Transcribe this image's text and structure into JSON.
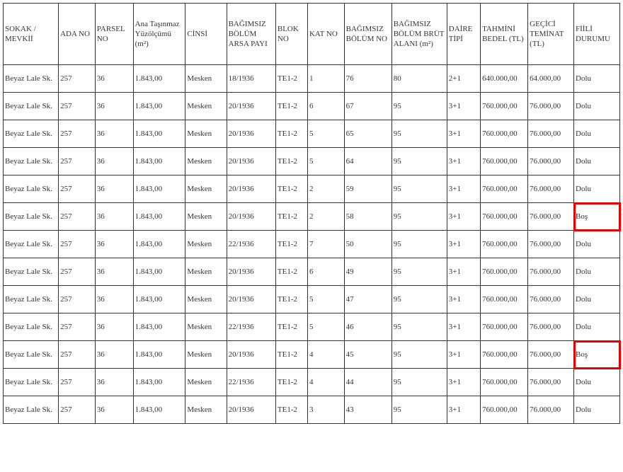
{
  "table": {
    "columns": [
      "SOKAK / MEVKİİ",
      "ADA NO",
      "PARSEL NO",
      "Ana Taşınmaz Yüzölçümü (m²)",
      "CİNSİ",
      "BAĞIMSIZ BÖLÜM ARSA PAYI",
      "BLOK NO",
      "KAT NO",
      "BAĞIMSIZ BÖLÜM NO",
      "BAĞIMSIZ BÖLÜM BRÜT ALANI (m²)",
      "DAİRE TİPİ",
      "TAHMİNİ BEDEL (TL)",
      "GEÇİCİ TEMİNAT (TL)",
      "FİİLİ DURUMU"
    ],
    "rows": [
      [
        "Beyaz Lale Sk.",
        "257",
        "36",
        "1.843,00",
        "Mesken",
        "18/1936",
        "TE1-2",
        "1",
        "76",
        "80",
        "2+1",
        "640.000,00",
        "64.000,00",
        "Dolu"
      ],
      [
        "Beyaz Lale Sk.",
        "257",
        "36",
        "1.843,00",
        "Mesken",
        "20/1936",
        "TE1-2",
        "6",
        "67",
        "95",
        "3+1",
        "760.000,00",
        "76.000,00",
        "Dolu"
      ],
      [
        "Beyaz Lale Sk.",
        "257",
        "36",
        "1.843,00",
        "Mesken",
        "20/1936",
        "TE1-2",
        "5",
        "65",
        "95",
        "3+1",
        "760.000,00",
        "76.000,00",
        "Dolu"
      ],
      [
        "Beyaz Lale Sk.",
        "257",
        "36",
        "1.843,00",
        "Mesken",
        "20/1936",
        "TE1-2",
        "5",
        "64",
        "95",
        "3+1",
        "760.000,00",
        "76.000,00",
        "Dolu"
      ],
      [
        "Beyaz Lale Sk.",
        "257",
        "36",
        "1.843,00",
        "Mesken",
        "20/1936",
        "TE1-2",
        "2",
        "59",
        "95",
        "3+1",
        "760.000,00",
        "76.000,00",
        "Dolu"
      ],
      [
        "Beyaz Lale Sk.",
        "257",
        "36",
        "1.843,00",
        "Mesken",
        "20/1936",
        "TE1-2",
        "2",
        "58",
        "95",
        "3+1",
        "760.000,00",
        "76.000,00",
        "Boş"
      ],
      [
        "Beyaz Lale Sk.",
        "257",
        "36",
        "1.843,00",
        "Mesken",
        "22/1936",
        "TE1-2",
        "7",
        "50",
        "95",
        "3+1",
        "760.000,00",
        "76.000,00",
        "Dolu"
      ],
      [
        "Beyaz Lale Sk.",
        "257",
        "36",
        "1.843,00",
        "Mesken",
        "20/1936",
        "TE1-2",
        "6",
        "49",
        "95",
        "3+1",
        "760.000,00",
        "76.000,00",
        "Dolu"
      ],
      [
        "Beyaz Lale Sk.",
        "257",
        "36",
        "1.843,00",
        "Mesken",
        "20/1936",
        "TE1-2",
        "5",
        "47",
        "95",
        "3+1",
        "760.000,00",
        "76.000,00",
        "Dolu"
      ],
      [
        "Beyaz Lale Sk.",
        "257",
        "36",
        "1.843,00",
        "Mesken",
        "22/1936",
        "TE1-2",
        "5",
        "46",
        "95",
        "3+1",
        "760.000,00",
        "76.000,00",
        "Dolu"
      ],
      [
        "Beyaz Lale Sk.",
        "257",
        "36",
        "1.843,00",
        "Mesken",
        "20/1936",
        "TE1-2",
        "4",
        "45",
        "95",
        "3+1",
        "760.000,00",
        "76.000,00",
        "Boş"
      ],
      [
        "Beyaz Lale Sk.",
        "257",
        "36",
        "1.843,00",
        "Mesken",
        "22/1936",
        "TE1-2",
        "4",
        "44",
        "95",
        "3+1",
        "760.000,00",
        "76.000,00",
        "Dolu"
      ],
      [
        "Beyaz Lale Sk.",
        "257",
        "36",
        "1.843,00",
        "Mesken",
        "20/1936",
        "TE1-2",
        "3",
        "43",
        "95",
        "3+1",
        "760.000,00",
        "76.000,00",
        "Dolu"
      ]
    ],
    "highlight_cells": [
      {
        "row": 5,
        "col": 13
      },
      {
        "row": 10,
        "col": 13
      }
    ],
    "border_color": "#333333",
    "background_color": "#ffffff",
    "font_family": "Times New Roman",
    "font_size_pt": 8,
    "highlight_color": "#e60000"
  }
}
